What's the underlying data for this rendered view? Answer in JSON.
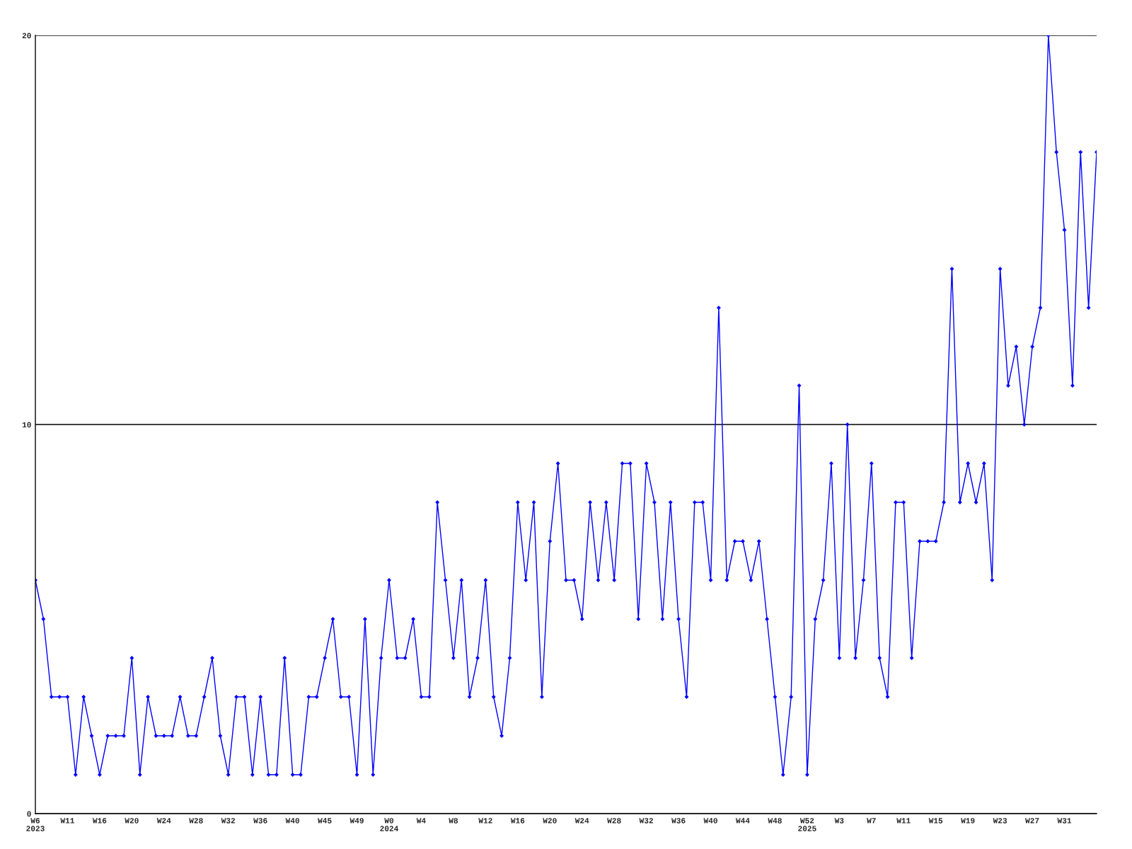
{
  "chart_data": {
    "type": "line",
    "categories": [
      "W6\n2023",
      null,
      null,
      null,
      "W11",
      null,
      null,
      null,
      "W16",
      null,
      null,
      null,
      "W20",
      null,
      null,
      null,
      "W24",
      null,
      null,
      null,
      "W28",
      null,
      null,
      null,
      "W32",
      null,
      null,
      null,
      "W36",
      null,
      null,
      null,
      "W40",
      null,
      null,
      null,
      "W45",
      null,
      null,
      null,
      "W49",
      null,
      null,
      null,
      "W0\n2024",
      null,
      null,
      null,
      "W4",
      null,
      null,
      null,
      "W8",
      null,
      null,
      null,
      "W12",
      null,
      null,
      null,
      "W16",
      null,
      null,
      null,
      "W20",
      null,
      null,
      null,
      "W24",
      null,
      null,
      null,
      "W28",
      null,
      null,
      null,
      "W32",
      null,
      null,
      null,
      "W36",
      null,
      null,
      null,
      "W40",
      null,
      null,
      null,
      "W44",
      null,
      null,
      null,
      "W48",
      null,
      null,
      null,
      "W52\n2025",
      null,
      null,
      null,
      "W3",
      null,
      null,
      null,
      "W7",
      null,
      null,
      null,
      "W11",
      null,
      null,
      null,
      "W15",
      null,
      null,
      null,
      "W19",
      null,
      null,
      null,
      "W23",
      null,
      null,
      null,
      "W27",
      null,
      null,
      null,
      "W31",
      null,
      null,
      null,
      null
    ],
    "series": [
      {
        "color": "#0000ff",
        "values": [
          6,
          5,
          3,
          3,
          3,
          1,
          3,
          2,
          1,
          2,
          2,
          2,
          4,
          1,
          3,
          2,
          2,
          2,
          3,
          2,
          2,
          3,
          4,
          2,
          1,
          3,
          3,
          1,
          3,
          1,
          1,
          4,
          1,
          1,
          3,
          3,
          4,
          5,
          3,
          3,
          1,
          5,
          1,
          4,
          6,
          4,
          4,
          5,
          3,
          3,
          8,
          6,
          4,
          6,
          3,
          4,
          6,
          3,
          2,
          4,
          8,
          6,
          8,
          3,
          7,
          9,
          6,
          6,
          5,
          8,
          6,
          8,
          6,
          9,
          9,
          5,
          9,
          8,
          5,
          8,
          5,
          3,
          8,
          8,
          6,
          13,
          6,
          7,
          7,
          6,
          7,
          5,
          3,
          1,
          3,
          11,
          1,
          5,
          6,
          9,
          4,
          10,
          4,
          6,
          9,
          4,
          3,
          8,
          8,
          4,
          7,
          7,
          7,
          8,
          14,
          8,
          9,
          8,
          9,
          6,
          14,
          11,
          12,
          10,
          12,
          13,
          20,
          17,
          15,
          11,
          17,
          13,
          17
        ]
      }
    ],
    "ylim": [
      0,
      20
    ],
    "yticks": [
      0,
      10,
      20
    ],
    "grid": "y",
    "marker": "diamond",
    "line_style": "solid"
  }
}
